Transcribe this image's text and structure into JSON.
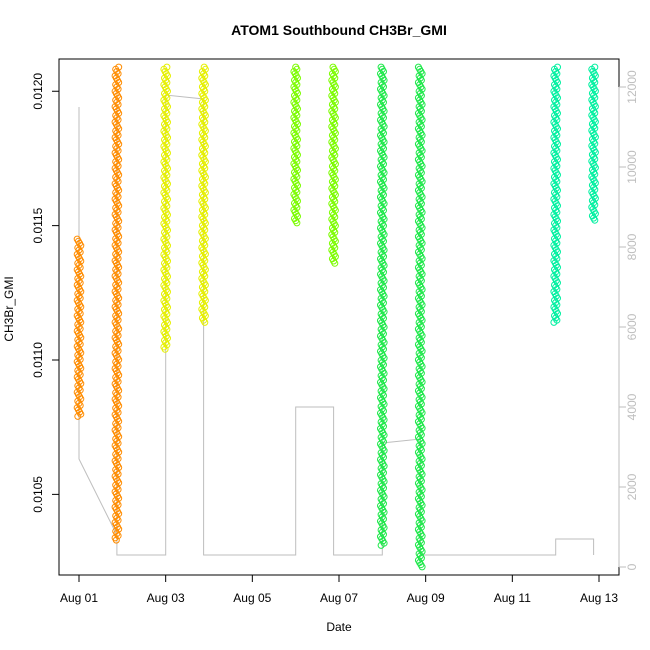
{
  "chart_data": {
    "type": "scatter",
    "title": "ATOM1 Southbound CH3Br_GMI",
    "xlabel": "Date",
    "ylabel": "CH3Br_GMI",
    "xlim": [
      "2016-08-01",
      "2016-08-13"
    ],
    "ylim": [
      0.0102,
      0.01212
    ],
    "y2lim": [
      -200,
      12700
    ],
    "x_ticks": [
      {
        "value": "2016-08-01",
        "label": "Aug 01"
      },
      {
        "value": "2016-08-03",
        "label": "Aug 03"
      },
      {
        "value": "2016-08-05",
        "label": "Aug 05"
      },
      {
        "value": "2016-08-07",
        "label": "Aug 07"
      },
      {
        "value": "2016-08-09",
        "label": "Aug 09"
      },
      {
        "value": "2016-08-11",
        "label": "Aug 11"
      },
      {
        "value": "2016-08-13",
        "label": "Aug 13"
      }
    ],
    "y_ticks": [
      {
        "value": 0.0105,
        "label": "0.0105"
      },
      {
        "value": 0.011,
        "label": "0.0110"
      },
      {
        "value": 0.0115,
        "label": "0.0115"
      },
      {
        "value": 0.012,
        "label": "0.0120"
      }
    ],
    "y2_ticks": [
      {
        "value": 0,
        "label": "0"
      },
      {
        "value": 2000,
        "label": "2000"
      },
      {
        "value": 4000,
        "label": "4000"
      },
      {
        "value": 6000,
        "label": "6000"
      },
      {
        "value": 8000,
        "label": "8000"
      },
      {
        "value": 10000,
        "label": "10000"
      },
      {
        "value": 12000,
        "label": "12000"
      }
    ],
    "altitude_color": "#bebebe",
    "clusters": [
      {
        "x": "2016-08-01T00:00",
        "ymin": 0.01079,
        "ymax": 0.01145,
        "color": "#ff8c00"
      },
      {
        "x": "2016-08-01T21:00",
        "ymin": 0.01033,
        "ymax": 0.01209,
        "color": "#ff8c00"
      },
      {
        "x": "2016-08-03T00:00",
        "ymin": 0.01104,
        "ymax": 0.01209,
        "color": "#e6f000"
      },
      {
        "x": "2016-08-03T21:00",
        "ymin": 0.01114,
        "ymax": 0.01209,
        "color": "#e6f000"
      },
      {
        "x": "2016-08-06T00:00",
        "ymin": 0.01151,
        "ymax": 0.01209,
        "color": "#7cfc00"
      },
      {
        "x": "2016-08-06T21:00",
        "ymin": 0.01136,
        "ymax": 0.01209,
        "color": "#7cfc00"
      },
      {
        "x": "2016-08-08T00:00",
        "ymin": 0.01031,
        "ymax": 0.01209,
        "color": "#1ee84a"
      },
      {
        "x": "2016-08-08T21:00",
        "ymin": 0.01023,
        "ymax": 0.01209,
        "color": "#1ee84a"
      },
      {
        "x": "2016-08-12T00:00",
        "ymin": 0.01114,
        "ymax": 0.01209,
        "color": "#00f0a0"
      },
      {
        "x": "2016-08-12T21:00",
        "ymin": 0.01152,
        "ymax": 0.01209,
        "color": "#00f0a0"
      }
    ],
    "altitude_series": [
      {
        "x": "2016-08-01T00:00",
        "y": 11500
      },
      {
        "x": "2016-08-01T00:00",
        "y": 2700
      },
      {
        "x": "2016-08-01T21:00",
        "y": 800
      },
      {
        "x": "2016-08-01T21:00",
        "y": 11500
      },
      {
        "x": "2016-08-01T21:00",
        "y": 300
      },
      {
        "x": "2016-08-03T00:00",
        "y": 300
      },
      {
        "x": "2016-08-03T00:00",
        "y": 11800
      },
      {
        "x": "2016-08-03T21:00",
        "y": 11700
      },
      {
        "x": "2016-08-03T21:00",
        "y": 300
      },
      {
        "x": "2016-08-06T00:00",
        "y": 300
      },
      {
        "x": "2016-08-06T00:00",
        "y": 4000
      },
      {
        "x": "2016-08-06T21:00",
        "y": 4000
      },
      {
        "x": "2016-08-06T21:00",
        "y": 300
      },
      {
        "x": "2016-08-08T00:00",
        "y": 300
      },
      {
        "x": "2016-08-08T00:00",
        "y": 3100
      },
      {
        "x": "2016-08-08T21:00",
        "y": 3200
      },
      {
        "x": "2016-08-08T21:00",
        "y": 300
      },
      {
        "x": "2016-08-12T00:00",
        "y": 300
      },
      {
        "x": "2016-08-12T00:00",
        "y": 700
      },
      {
        "x": "2016-08-12T21:00",
        "y": 700
      },
      {
        "x": "2016-08-12T21:00",
        "y": 300
      }
    ]
  }
}
